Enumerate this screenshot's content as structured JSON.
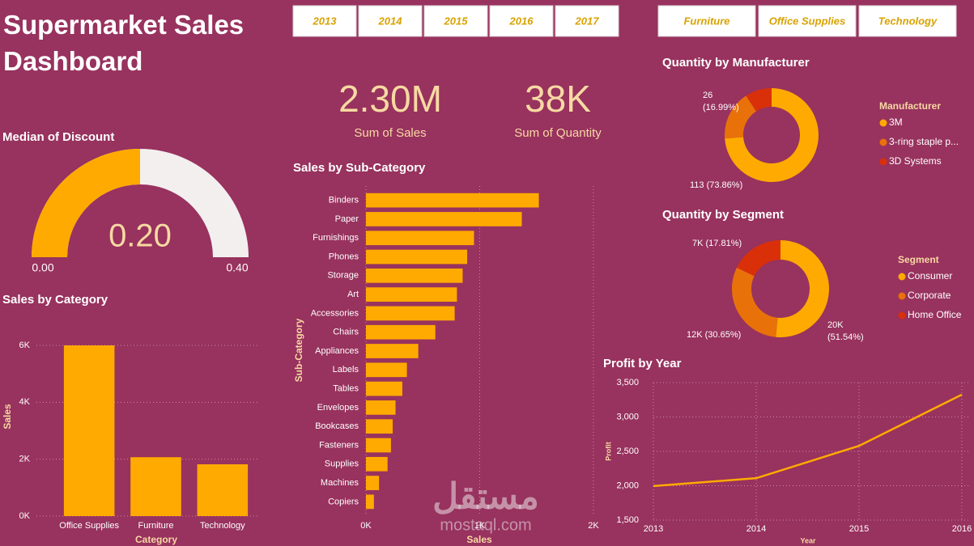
{
  "title": "Supermarket Sales Dashboard",
  "year_filters": [
    "2013",
    "2014",
    "2015",
    "2016",
    "2017"
  ],
  "category_filters": [
    "Furniture",
    "Office Supplies",
    "Technology"
  ],
  "kpis": [
    {
      "value": "2.30M",
      "label": "Sum of Sales"
    },
    {
      "value": "38K",
      "label": "Sum of Quantity"
    }
  ],
  "watermark": {
    "arabic": "مستقل",
    "latin": "mostaql.com"
  },
  "chart_data": [
    {
      "type": "gauge",
      "title": "Median of Discount",
      "value": 0.2,
      "value_label": "0.20",
      "ylim": [
        0,
        0.4
      ],
      "yticks": [
        {
          "value": 0,
          "label": "0.00"
        },
        {
          "value": 0.4,
          "label": "0.40"
        }
      ],
      "color": "#ffaa00"
    },
    {
      "type": "bar",
      "title": "Sales by Category",
      "x_label": "Category",
      "y_label": "Sales",
      "categories": [
        "Office Supplies",
        "Furniture",
        "Technology"
      ],
      "values": [
        6000,
        2070,
        1820
      ],
      "color": "#ffaa00",
      "ylim": [
        0,
        6000
      ],
      "yticks": [
        {
          "value": 0,
          "label": "0K"
        },
        {
          "value": 2000,
          "label": "2K"
        },
        {
          "value": 4000,
          "label": "4K"
        },
        {
          "value": 6000,
          "label": "6K"
        }
      ],
      "grid": true
    },
    {
      "type": "hbar",
      "title": "Sales by Sub-Category",
      "x_label": "Sales",
      "y_label": "Sub-Category",
      "categories": [
        "Binders",
        "Paper",
        "Furnishings",
        "Phones",
        "Storage",
        "Art",
        "Accessories",
        "Chairs",
        "Appliances",
        "Labels",
        "Tables",
        "Envelopes",
        "Bookcases",
        "Fasteners",
        "Supplies",
        "Machines",
        "Copiers"
      ],
      "values": [
        1520,
        1370,
        950,
        890,
        850,
        800,
        780,
        610,
        460,
        360,
        320,
        260,
        235,
        220,
        190,
        115,
        70
      ],
      "color": "#ffaa00",
      "xlim": [
        0,
        2000
      ],
      "xticks": [
        {
          "value": 0,
          "label": "0K"
        },
        {
          "value": 1000,
          "label": "1K"
        },
        {
          "value": 2000,
          "label": "2K"
        }
      ],
      "grid": true
    },
    {
      "type": "donut",
      "title": "Quantity by Manufacturer",
      "legend_title": "Manufacturer",
      "categories": [
        "3M",
        "3-ring staple p...",
        "3D Systems"
      ],
      "values": [
        113,
        26,
        14
      ],
      "value_labels": [
        "113 (73.86%)",
        "26 (16.99%)",
        null
      ],
      "colors": [
        "#ffaa00",
        "#e8710a",
        "#d9300a"
      ]
    },
    {
      "type": "donut",
      "title": "Quantity by Segment",
      "legend_title": "Segment",
      "categories": [
        "Consumer",
        "Corporate",
        "Home Office"
      ],
      "values": [
        19521,
        11608,
        6744
      ],
      "value_labels": [
        "20K (51.54%)",
        "12K (30.65%)",
        "7K (17.81%)"
      ],
      "colors": [
        "#ffaa00",
        "#e8710a",
        "#d9300a"
      ]
    },
    {
      "type": "line",
      "title": "Profit by Year",
      "x_label": "Year",
      "y_label": "Profit",
      "x": [
        2013,
        2014,
        2015,
        2016
      ],
      "values": [
        1995,
        2110,
        2580,
        3325
      ],
      "color": "#ffaa00",
      "xlim": [
        2013,
        2016
      ],
      "xticks": [
        2013,
        2014,
        2015,
        2016
      ],
      "ylim": [
        1500,
        3500
      ],
      "yticks": [
        {
          "value": 1500,
          "label": "1,500"
        },
        {
          "value": 2000,
          "label": "2,000"
        },
        {
          "value": 2500,
          "label": "2,500"
        },
        {
          "value": 3000,
          "label": "3,000"
        },
        {
          "value": 3500,
          "label": "3,500"
        }
      ],
      "grid": true
    }
  ]
}
